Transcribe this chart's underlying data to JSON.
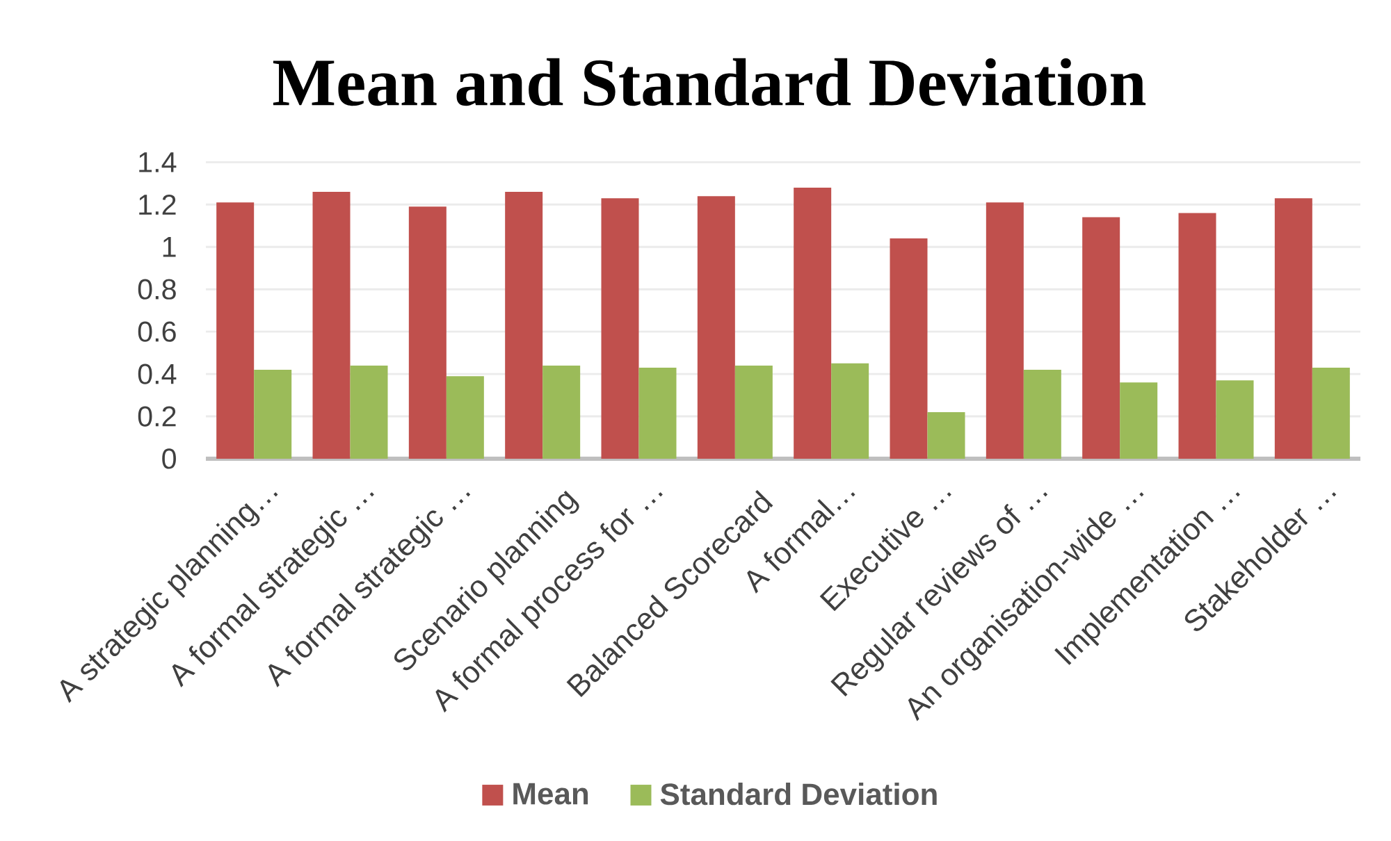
{
  "chart_data": {
    "type": "bar",
    "title": "Mean and Standard Deviation",
    "categories": [
      "A strategic planning…",
      "A formal strategic …",
      "A formal strategic …",
      "Scenario planning",
      "A formal process for …",
      "Balanced Scorecard",
      "A formal…",
      "Executive …",
      "Regular reviews of …",
      "An organisation-wide …",
      "Implementation …",
      "Stakeholder …"
    ],
    "series": [
      {
        "name": "Mean",
        "color": "#c0504d",
        "values": [
          1.21,
          1.26,
          1.19,
          1.26,
          1.23,
          1.24,
          1.28,
          1.04,
          1.21,
          1.14,
          1.16,
          1.23
        ]
      },
      {
        "name": "Standard Deviation",
        "color": "#9bbb59",
        "values": [
          0.42,
          0.44,
          0.39,
          0.44,
          0.43,
          0.44,
          0.45,
          0.22,
          0.42,
          0.36,
          0.37,
          0.43
        ]
      }
    ],
    "ylim": [
      0,
      1.4
    ],
    "yticks": [
      0,
      0.2,
      0.4,
      0.6,
      0.8,
      1,
      1.2,
      1.4
    ],
    "grid": "y",
    "legend": "bottom"
  }
}
